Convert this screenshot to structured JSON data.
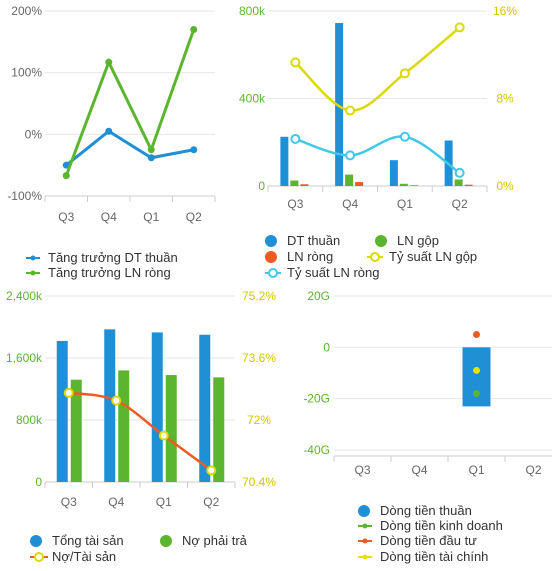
{
  "colors": {
    "blue": "#1f8fd6",
    "green": "#5cb52e",
    "orange": "#f05a23",
    "yellow": "#dada00",
    "cyan": "#40c8e8",
    "yellow_point": "#e8e000"
  },
  "chart_data": [
    {
      "type": "line",
      "categories": [
        "Q3",
        "Q4",
        "Q1",
        "Q2"
      ],
      "y_ticks": [
        "200%",
        "100%",
        "0%",
        "-100%"
      ],
      "ylim": [
        -100,
        200
      ],
      "series": [
        {
          "name": "Tăng trưởng DT thuần",
          "values": [
            -50,
            5,
            -38,
            -25
          ]
        },
        {
          "name": "Tăng trưởng LN ròng",
          "values": [
            -67,
            117,
            -25,
            170
          ]
        }
      ]
    },
    {
      "type": "bar",
      "categories": [
        "Q3",
        "Q4",
        "Q1",
        "Q2"
      ],
      "y_ticks_left": [
        "800k",
        "400k",
        "0"
      ],
      "y_ticks_right": [
        "16%",
        "8%",
        "0%"
      ],
      "ylim_left": [
        0,
        800000
      ],
      "ylim_right": [
        0,
        16
      ],
      "bar_series": [
        {
          "name": "DT thuần",
          "values": [
            225000,
            745000,
            118000,
            208000
          ]
        },
        {
          "name": "LN gộp",
          "values": [
            25000,
            52000,
            10000,
            30000
          ]
        },
        {
          "name": "LN ròng",
          "values": [
            8000,
            18000,
            3000,
            6000
          ]
        }
      ],
      "line_series": [
        {
          "name": "Tỷ suất LN gộp",
          "values": [
            11.3,
            6.9,
            10.3,
            14.5
          ]
        },
        {
          "name": "Tỷ suất LN ròng",
          "values": [
            4.3,
            2.8,
            4.5,
            1.2
          ]
        }
      ]
    },
    {
      "type": "bar",
      "categories": [
        "Q3",
        "Q4",
        "Q1",
        "Q2"
      ],
      "y_ticks_left": [
        "2,400k",
        "1,600k",
        "800k",
        "0"
      ],
      "y_ticks_right": [
        "75.2%",
        "73.6%",
        "72%",
        "70.4%"
      ],
      "ylim_left": [
        0,
        2400000
      ],
      "ylim_right": [
        70.4,
        75.2
      ],
      "bar_series": [
        {
          "name": "Tổng tài sản",
          "values": [
            1820000,
            1970000,
            1930000,
            1900000
          ]
        },
        {
          "name": "Nợ phải trả",
          "values": [
            1320000,
            1440000,
            1380000,
            1350000
          ]
        }
      ],
      "line_series": [
        {
          "name": "Nợ/Tài sản",
          "values": [
            72.7,
            72.5,
            71.6,
            70.7
          ]
        }
      ]
    },
    {
      "type": "bar",
      "categories": [
        "Q3",
        "Q4",
        "Q1",
        "Q2"
      ],
      "y_ticks": [
        "20G",
        "0",
        "-20G",
        "-40G"
      ],
      "ylim": [
        -40,
        20
      ],
      "series": [
        {
          "name": "Dòng tiền thuần",
          "values": [
            null,
            null,
            -23,
            null
          ]
        },
        {
          "name": "Dòng tiền kinh doanh",
          "values": [
            null,
            null,
            -18,
            null
          ]
        },
        {
          "name": "Dòng tiền đầu tư",
          "values": [
            null,
            null,
            5,
            null
          ]
        },
        {
          "name": "Dòng tiền tài chính",
          "values": [
            null,
            null,
            -9,
            null
          ]
        }
      ]
    }
  ]
}
